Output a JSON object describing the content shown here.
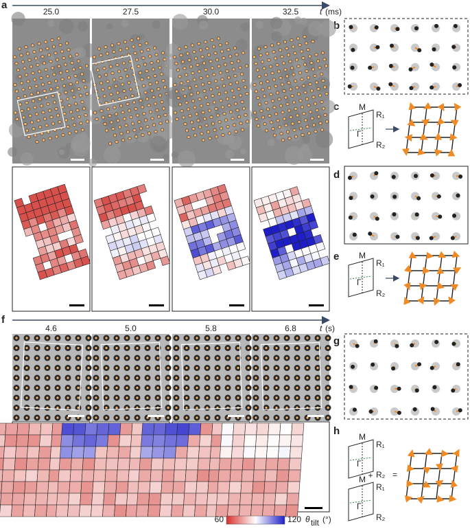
{
  "figure": {
    "panel_labels": [
      "a",
      "b",
      "c",
      "d",
      "e",
      "f",
      "g",
      "h"
    ],
    "a": {
      "times": [
        "25.0",
        "27.5",
        "30.0",
        "32.5"
      ],
      "axis_symbol": "t",
      "axis_unit": "(ms)"
    },
    "f": {
      "times": [
        "4.6",
        "5.0",
        "5.8",
        "6.8"
      ],
      "axis_symbol": "t",
      "axis_unit": "(s)"
    },
    "diagram_labels": {
      "M": "M",
      "Gamma": "Γ",
      "R1": "R₁",
      "R2": "R₂"
    },
    "h_operators": {
      "plus": "+",
      "equals": "="
    },
    "colorbar": {
      "ticks": [
        60,
        120
      ],
      "symbol": "θ",
      "subscript": "tilt",
      "unit": "(°)"
    }
  }
}
